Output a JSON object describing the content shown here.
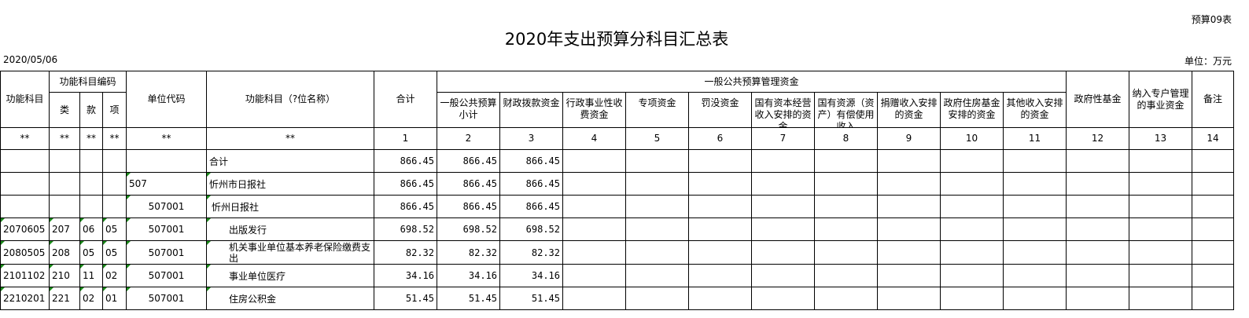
{
  "form_no": "预算09表",
  "title": "2020年支出预算分科目汇总表",
  "date": "2020/05/06",
  "unit": "单位：万元",
  "header": {
    "func_subject": "功能科目",
    "func_code": "功能科目编码",
    "lei": "类",
    "kuan": "款",
    "xiang": "项",
    "unit_code": "单位代码",
    "func_name": "功能科目（?位名称）",
    "total": "合计",
    "general": "一般公共预算管理资金",
    "sub": [
      "一般公共预算小计",
      "财政拨款资金",
      "行政事业性收费资金",
      "专项资金",
      "罚没资金",
      "国有资本经营收入安排的资金",
      "国有资源（资产）有偿使用收入",
      "捐赠收入安排的资金",
      "政府住房基金安排的资金",
      "其他收入安排的资金"
    ],
    "gov_fund": "政府性基金",
    "special_account": "纳入专户管理的事业资金",
    "remark": "备注",
    "index": [
      "**",
      "**",
      "**",
      "**",
      "**",
      "**",
      "1",
      "2",
      "3",
      "4",
      "5",
      "6",
      "7",
      "8",
      "9",
      "10",
      "11",
      "12",
      "13",
      "14"
    ]
  },
  "rows": [
    {
      "code": "",
      "lei": "",
      "kuan": "",
      "xiang": "",
      "unit": "",
      "name": "合计",
      "total": "866.45",
      "sub": "866.45",
      "fin": "866.45"
    },
    {
      "code": "",
      "lei": "",
      "kuan": "",
      "xiang": "",
      "unit": "507",
      "name": "忻州市日报社",
      "total": "866.45",
      "sub": "866.45",
      "fin": "866.45"
    },
    {
      "code": "",
      "lei": "",
      "kuan": "",
      "xiang": "",
      "unit": "507001",
      "name": "忻州日报社",
      "total": "866.45",
      "sub": "866.45",
      "fin": "866.45"
    },
    {
      "code": "2070605",
      "lei": "207",
      "kuan": "06",
      "xiang": "05",
      "unit": "507001",
      "name": "出版发行",
      "total": "698.52",
      "sub": "698.52",
      "fin": "698.52"
    },
    {
      "code": "2080505",
      "lei": "208",
      "kuan": "05",
      "xiang": "05",
      "unit": "507001",
      "name": "机关事业单位基本养老保险缴费支出",
      "total": "82.32",
      "sub": "82.32",
      "fin": "82.32"
    },
    {
      "code": "2101102",
      "lei": "210",
      "kuan": "11",
      "xiang": "02",
      "unit": "507001",
      "name": "事业单位医疗",
      "total": "34.16",
      "sub": "34.16",
      "fin": "34.16"
    },
    {
      "code": "2210201",
      "lei": "221",
      "kuan": "02",
      "xiang": "01",
      "unit": "507001",
      "name": "住房公积金",
      "total": "51.45",
      "sub": "51.45",
      "fin": "51.45"
    }
  ]
}
